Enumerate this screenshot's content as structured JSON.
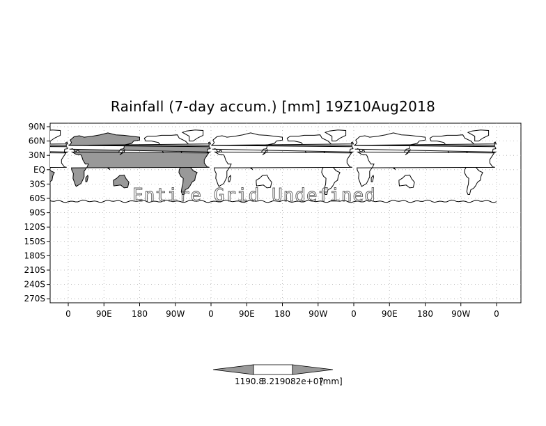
{
  "title": "Rainfall (7-day accum.) [mm] 19Z10Aug2018",
  "overlay_text": "Entire Grid Undefined",
  "y_ticks": [
    "90N",
    "60N",
    "30N",
    "EQ",
    "30S",
    "60S",
    "90S",
    "120S",
    "150S",
    "180S",
    "210S",
    "240S",
    "270S"
  ],
  "x_ticks": [
    "0",
    "90E",
    "180",
    "90W",
    "0",
    "90E",
    "180",
    "90W",
    "0",
    "90E",
    "180",
    "90W",
    "0"
  ],
  "colorbar": {
    "min_label": "1190.8",
    "max_label": "3.219082e+07",
    "unit_label": "[mm]"
  },
  "colors": {
    "land_shaded": "#999999",
    "background": "#ffffff",
    "grid": "#aaaaaa"
  }
}
